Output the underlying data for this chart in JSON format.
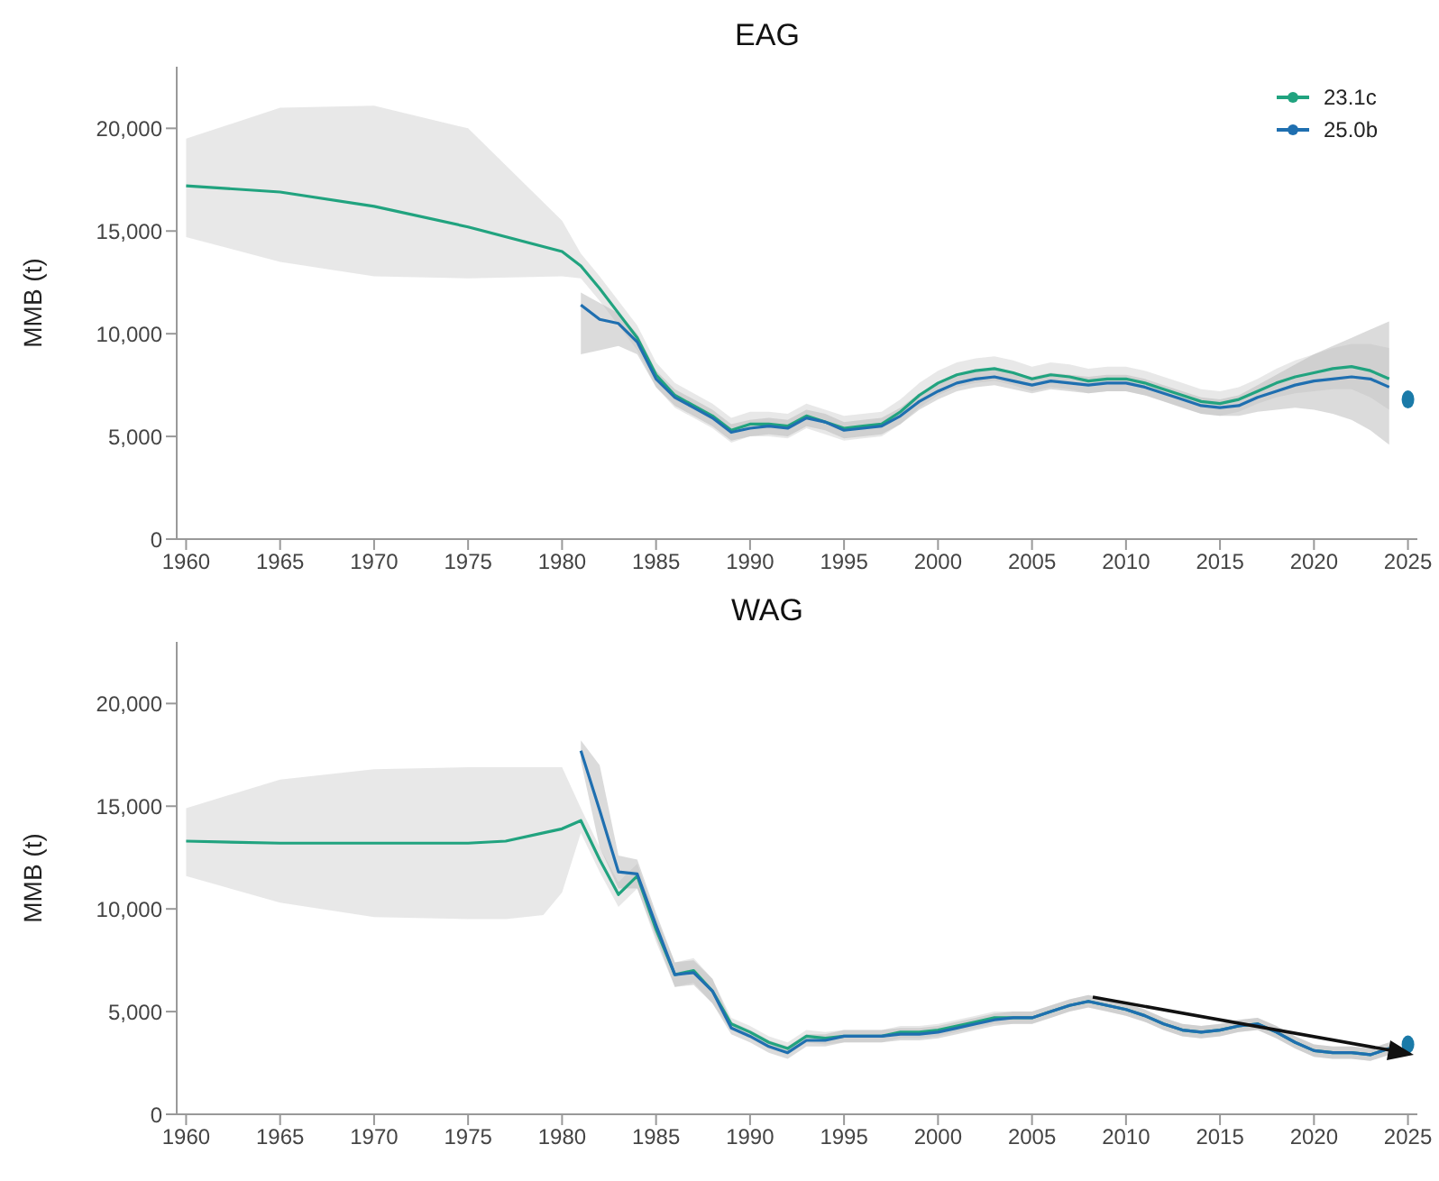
{
  "chart_data": [
    {
      "type": "line",
      "title": "EAG",
      "ylabel": "MMB (t)",
      "xlim": [
        1959.5,
        2025.5
      ],
      "ylim": [
        0,
        23000
      ],
      "xticks": [
        1960,
        1965,
        1970,
        1975,
        1980,
        1985,
        1990,
        1995,
        2000,
        2005,
        2010,
        2015,
        2020,
        2025
      ],
      "yticks": [
        {
          "value": 0,
          "label": "0"
        },
        {
          "value": 5000,
          "label": "5,000"
        },
        {
          "value": 10000,
          "label": "10,000"
        },
        {
          "value": 15000,
          "label": "15,000"
        },
        {
          "value": 20000,
          "label": "20,000"
        }
      ],
      "legend": "top right",
      "series": [
        {
          "name": "23.1c",
          "color": "#21a37f",
          "x": [
            1960,
            1965,
            1970,
            1975,
            1980,
            1981,
            1982,
            1983,
            1984,
            1985,
            1986,
            1987,
            1988,
            1989,
            1990,
            1991,
            1992,
            1993,
            1994,
            1995,
            1996,
            1997,
            1998,
            1999,
            2000,
            2001,
            2002,
            2003,
            2004,
            2005,
            2006,
            2007,
            2008,
            2009,
            2010,
            2011,
            2012,
            2013,
            2014,
            2015,
            2016,
            2017,
            2018,
            2019,
            2020,
            2021,
            2022,
            2023,
            2024
          ],
          "values": [
            17200,
            16900,
            16200,
            15200,
            14000,
            13300,
            12200,
            11000,
            9800,
            8000,
            7000,
            6500,
            6000,
            5300,
            5600,
            5600,
            5500,
            6000,
            5700,
            5400,
            5500,
            5600,
            6200,
            7000,
            7600,
            8000,
            8200,
            8300,
            8100,
            7800,
            8000,
            7900,
            7700,
            7800,
            7800,
            7600,
            7300,
            7000,
            6700,
            6600,
            6800,
            7200,
            7600,
            7900,
            8100,
            8300,
            8400,
            8200,
            7800
          ],
          "upper": [
            19500,
            21000,
            21100,
            20000,
            15500,
            13900,
            12800,
            11600,
            10400,
            8600,
            7600,
            7100,
            6600,
            5900,
            6200,
            6200,
            6100,
            6600,
            6300,
            6000,
            6100,
            6200,
            6800,
            7600,
            8200,
            8600,
            8800,
            8900,
            8700,
            8400,
            8600,
            8500,
            8300,
            8400,
            8400,
            8200,
            7900,
            7600,
            7300,
            7200,
            7400,
            7800,
            8300,
            8700,
            9000,
            9300,
            9500,
            9500,
            9300
          ],
          "lower": [
            14700,
            13500,
            12800,
            12700,
            12800,
            12700,
            11600,
            10400,
            9200,
            7400,
            6400,
            5900,
            5400,
            4700,
            5000,
            5000,
            4900,
            5400,
            5100,
            4800,
            4900,
            5000,
            5600,
            6400,
            7000,
            7400,
            7600,
            7700,
            7500,
            7200,
            7400,
            7300,
            7100,
            7200,
            7200,
            7000,
            6700,
            6400,
            6100,
            6000,
            6200,
            6600,
            6900,
            7100,
            7200,
            7300,
            7300,
            6900,
            6300
          ]
        },
        {
          "name": "25.0b",
          "color": "#1f6fb0",
          "x": [
            1981,
            1982,
            1983,
            1984,
            1985,
            1986,
            1987,
            1988,
            1989,
            1990,
            1991,
            1992,
            1993,
            1994,
            1995,
            1996,
            1997,
            1998,
            1999,
            2000,
            2001,
            2002,
            2003,
            2004,
            2005,
            2006,
            2007,
            2008,
            2009,
            2010,
            2011,
            2012,
            2013,
            2014,
            2015,
            2016,
            2017,
            2018,
            2019,
            2020,
            2021,
            2022,
            2023,
            2024
          ],
          "values": [
            11400,
            10700,
            10500,
            9600,
            7800,
            6900,
            6400,
            5900,
            5200,
            5400,
            5500,
            5400,
            5900,
            5700,
            5300,
            5400,
            5500,
            6000,
            6700,
            7200,
            7600,
            7800,
            7900,
            7700,
            7500,
            7700,
            7600,
            7500,
            7600,
            7600,
            7400,
            7100,
            6800,
            6500,
            6400,
            6500,
            6900,
            7200,
            7500,
            7700,
            7800,
            7900,
            7800,
            7400
          ],
          "upper": [
            12000,
            11500,
            11000,
            10000,
            8200,
            7300,
            6800,
            6300,
            5600,
            5800,
            5900,
            5800,
            6300,
            6100,
            5700,
            5800,
            5900,
            6400,
            7100,
            7600,
            8000,
            8200,
            8300,
            8100,
            7900,
            8100,
            8000,
            7900,
            8000,
            8000,
            7800,
            7500,
            7200,
            6900,
            6800,
            7000,
            7500,
            8000,
            8500,
            9000,
            9400,
            9800,
            10200,
            10600
          ],
          "lower": [
            9000,
            9200,
            9400,
            9000,
            7400,
            6500,
            6000,
            5500,
            4800,
            5000,
            5100,
            5000,
            5500,
            5300,
            4900,
            5000,
            5100,
            5600,
            6300,
            6800,
            7200,
            7400,
            7500,
            7300,
            7100,
            7300,
            7200,
            7100,
            7200,
            7200,
            7000,
            6700,
            6400,
            6100,
            6000,
            6000,
            6200,
            6300,
            6400,
            6300,
            6100,
            5800,
            5300,
            4600
          ]
        },
        {
          "type": "scatter",
          "color": "#1a7aa8",
          "x": [
            2025
          ],
          "values": [
            6800
          ]
        }
      ]
    },
    {
      "type": "line",
      "title": "WAG",
      "ylabel": "MMB (t)",
      "xlim": [
        1959.5,
        2025.5
      ],
      "ylim": [
        0,
        23000
      ],
      "xticks": [
        1960,
        1965,
        1970,
        1975,
        1980,
        1985,
        1990,
        1995,
        2000,
        2005,
        2010,
        2015,
        2020,
        2025
      ],
      "yticks": [
        {
          "value": 0,
          "label": "0"
        },
        {
          "value": 5000,
          "label": "5,000"
        },
        {
          "value": 10000,
          "label": "10,000"
        },
        {
          "value": 15000,
          "label": "15,000"
        },
        {
          "value": 20000,
          "label": "20,000"
        }
      ],
      "series": [
        {
          "color": "#21a37f",
          "x": [
            1960,
            1965,
            1970,
            1975,
            1977,
            1979,
            1980,
            1981,
            1982,
            1983,
            1984,
            1985,
            1986,
            1987,
            1988,
            1989,
            1990,
            1991,
            1992,
            1993,
            1994,
            1995,
            1996,
            1997,
            1998,
            1999,
            2000,
            2001,
            2002,
            2003,
            2004,
            2005,
            2006,
            2007,
            2008,
            2009,
            2010,
            2011,
            2012,
            2013,
            2014,
            2015,
            2016,
            2017,
            2018,
            2019,
            2020,
            2021,
            2022,
            2023,
            2024
          ],
          "values": [
            13300,
            13200,
            13200,
            13200,
            13300,
            13700,
            13900,
            14300,
            12400,
            10700,
            11600,
            9000,
            6800,
            7000,
            6000,
            4400,
            4000,
            3500,
            3200,
            3800,
            3700,
            3800,
            3800,
            3800,
            4000,
            4000,
            4100,
            4300,
            4500,
            4700,
            4700,
            4700,
            5000,
            5300,
            5500,
            5300,
            5100,
            4800,
            4400,
            4100,
            4000,
            4100,
            4300,
            4400,
            4000,
            3500,
            3100,
            3000,
            3000,
            2900,
            3200
          ],
          "upper": [
            14900,
            16300,
            16800,
            16900,
            16900,
            16900,
            16900,
            14900,
            13000,
            11300,
            12200,
            9600,
            7400,
            7600,
            6600,
            4700,
            4300,
            3800,
            3500,
            4100,
            4000,
            4100,
            4100,
            4100,
            4300,
            4300,
            4400,
            4600,
            4800,
            5000,
            5000,
            5000,
            5300,
            5600,
            5800,
            5600,
            5400,
            5100,
            4700,
            4400,
            4300,
            4400,
            4600,
            4700,
            4300,
            3800,
            3400,
            3300,
            3300,
            3200,
            3500
          ],
          "lower": [
            11600,
            10300,
            9600,
            9500,
            9500,
            9700,
            10800,
            13700,
            11800,
            10100,
            11000,
            8400,
            6200,
            6400,
            5400,
            4100,
            3700,
            3200,
            2900,
            3500,
            3400,
            3500,
            3500,
            3500,
            3700,
            3700,
            3800,
            4000,
            4200,
            4400,
            4400,
            4400,
            4700,
            5000,
            5200,
            5000,
            4800,
            4500,
            4100,
            3800,
            3700,
            3800,
            4000,
            4100,
            3700,
            3200,
            2800,
            2700,
            2700,
            2600,
            2900
          ]
        },
        {
          "color": "#1f6fb0",
          "x": [
            1981,
            1982,
            1983,
            1984,
            1985,
            1986,
            1987,
            1988,
            1989,
            1990,
            1991,
            1992,
            1993,
            1994,
            1995,
            1996,
            1997,
            1998,
            1999,
            2000,
            2001,
            2002,
            2003,
            2004,
            2005,
            2006,
            2007,
            2008,
            2009,
            2010,
            2011,
            2012,
            2013,
            2014,
            2015,
            2016,
            2017,
            2018,
            2019,
            2020,
            2021,
            2022,
            2023,
            2024
          ],
          "values": [
            17700,
            14800,
            11800,
            11700,
            9200,
            6800,
            6900,
            6000,
            4200,
            3800,
            3300,
            3000,
            3600,
            3600,
            3800,
            3800,
            3800,
            3900,
            3900,
            4000,
            4200,
            4400,
            4600,
            4700,
            4700,
            5000,
            5300,
            5500,
            5300,
            5100,
            4800,
            4400,
            4100,
            4000,
            4100,
            4300,
            4400,
            4000,
            3500,
            3100,
            3000,
            3000,
            2900,
            3200
          ],
          "upper": [
            18200,
            17000,
            12600,
            12400,
            9800,
            7400,
            7500,
            6600,
            4500,
            4100,
            3600,
            3300,
            3900,
            3900,
            4100,
            4100,
            4100,
            4200,
            4200,
            4300,
            4500,
            4700,
            4900,
            5000,
            5000,
            5300,
            5600,
            5800,
            5600,
            5400,
            5100,
            4700,
            4400,
            4300,
            4400,
            4600,
            4700,
            4300,
            3800,
            3400,
            3300,
            3300,
            3200,
            3500
          ],
          "lower": [
            17200,
            13000,
            11000,
            11000,
            8600,
            6200,
            6300,
            5400,
            3900,
            3500,
            3000,
            2700,
            3300,
            3300,
            3500,
            3500,
            3500,
            3600,
            3600,
            3700,
            3900,
            4100,
            4300,
            4400,
            4400,
            4700,
            5000,
            5200,
            5000,
            4800,
            4500,
            4100,
            3800,
            3700,
            3800,
            4000,
            4100,
            3700,
            3200,
            2800,
            2700,
            2700,
            2600,
            2900
          ]
        },
        {
          "type": "scatter",
          "color": "#1a7aa8",
          "x": [
            2025
          ],
          "values": [
            3400
          ]
        }
      ]
    }
  ]
}
